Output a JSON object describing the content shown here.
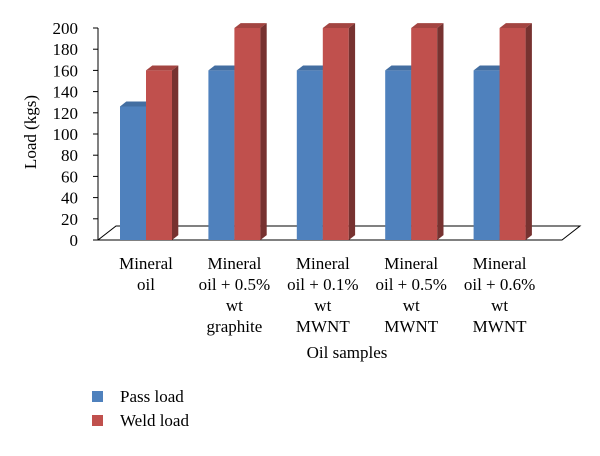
{
  "chart_data": {
    "type": "bar",
    "style": "3d-clustered-column",
    "xlabel": "Oil samples",
    "ylabel": "Load (kgs)",
    "ylim": [
      0,
      200
    ],
    "yticks": [
      0,
      20,
      40,
      60,
      80,
      100,
      120,
      140,
      160,
      180,
      200
    ],
    "grid": false,
    "legend_position": "bottom-left",
    "categories": [
      [
        "Mineral",
        "oil"
      ],
      [
        "Mineral",
        "oil + 0.5%",
        "wt",
        "graphite"
      ],
      [
        "Mineral",
        "oil + 0.1%",
        "wt",
        "MWNT"
      ],
      [
        "Mineral",
        "oil + 0.5%",
        "wt",
        "MWNT"
      ],
      [
        "Mineral",
        "oil + 0.6%",
        "wt",
        "MWNT"
      ]
    ],
    "series": [
      {
        "name": "Pass load",
        "color": "#4F81BD",
        "values": [
          126,
          160,
          160,
          160,
          160
        ]
      },
      {
        "name": "Weld load",
        "color": "#C0504D",
        "values": [
          160,
          200,
          200,
          200,
          200
        ]
      }
    ]
  }
}
